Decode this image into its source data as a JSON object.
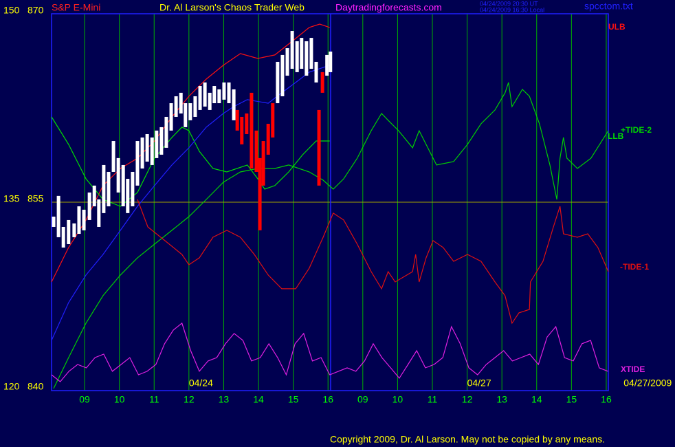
{
  "chart_data": {
    "type": "line",
    "symbol": "S&P E-Mini",
    "title": "Dr. Al Larson's Chaos Trader Web",
    "site": "Daytradingforecasts.com",
    "timestamps": [
      "04/24/2009 20:30 UT",
      "04/24/2009 16:30 Local"
    ],
    "file": "spcctom.txt",
    "copyright": "Copyright 2009, Dr. Al Larson. May not be copied by any means.",
    "annotations": [
      {
        "text": "04/24",
        "x": 3
      },
      {
        "text": "04/27",
        "x": 11
      },
      {
        "text": "04/27/2009",
        "x": 15.5
      }
    ],
    "xlim": [
      -0.95,
      15.06
    ],
    "xticks": [
      {
        "value": 0,
        "label": "09"
      },
      {
        "value": 1,
        "label": "10"
      },
      {
        "value": 2,
        "label": "11"
      },
      {
        "value": 3,
        "label": "12"
      },
      {
        "value": 4,
        "label": "13"
      },
      {
        "value": 5,
        "label": "14"
      },
      {
        "value": 6,
        "label": "15"
      },
      {
        "value": 7,
        "label": "16"
      },
      {
        "value": 8,
        "label": "09"
      },
      {
        "value": 9,
        "label": "10"
      },
      {
        "value": 10,
        "label": "11"
      },
      {
        "value": 11,
        "label": "12"
      },
      {
        "value": 12,
        "label": "13"
      },
      {
        "value": 13,
        "label": "14"
      },
      {
        "value": 14,
        "label": "15"
      },
      {
        "value": 15,
        "label": "16"
      }
    ],
    "ylim": [
      840,
      870
    ],
    "yticks": [
      840,
      855,
      870
    ],
    "y2lim": [
      120,
      150
    ],
    "y2ticks": [
      120,
      135,
      150
    ],
    "grid": true,
    "bars": [
      {
        "color": "#ffffff",
        "x": [
          -0.89,
          -0.75,
          -0.61,
          -0.46,
          -0.3,
          -0.16,
          -0.02,
          0.14,
          0.28,
          0.41,
          0.55,
          0.69,
          0.83,
          0.97,
          1.11,
          1.24,
          1.38,
          1.52,
          1.66,
          1.8,
          1.94,
          2.07,
          2.21,
          2.35,
          2.49,
          2.63,
          2.77,
          2.9,
          3.04,
          3.18,
          3.32,
          3.46,
          3.6,
          3.73,
          3.87,
          4.01,
          4.15,
          4.29,
          5.55,
          5.69,
          5.83,
          5.97,
          6.11,
          6.24,
          6.38,
          6.52,
          6.66,
          6.97,
          7.07
        ],
        "high": [
          853.85,
          855.5,
          853.03,
          853.58,
          853.31,
          854.67,
          854.4,
          855.77,
          856.32,
          855.22,
          857.96,
          857.41,
          859.87,
          858.51,
          857.96,
          856.86,
          857.41,
          859.87,
          860.15,
          860.42,
          860.15,
          860.7,
          860.97,
          861.79,
          862.88,
          863.43,
          863.71,
          862.88,
          862.88,
          863.43,
          864.25,
          864.53,
          863.71,
          864.25,
          863.98,
          864.53,
          864.53,
          863.98,
          866.17,
          866.72,
          867.26,
          868.63,
          867.81,
          868.08,
          867.81,
          868.08,
          866.17,
          866.72,
          866.99
        ],
        "low": [
          853.03,
          852.21,
          851.39,
          851.66,
          852.21,
          852.48,
          852.76,
          853.58,
          854.67,
          853.03,
          854.13,
          854.67,
          857.41,
          855.77,
          854.67,
          854.13,
          854.67,
          856.32,
          857.68,
          858.23,
          857.96,
          858.51,
          858.78,
          859.33,
          860.7,
          861.79,
          862.06,
          860.97,
          861.52,
          861.79,
          862.34,
          862.61,
          862.34,
          862.88,
          862.88,
          863.16,
          862.88,
          861.52,
          862.88,
          863.43,
          865.07,
          865.62,
          865.35,
          865.62,
          865.07,
          865.62,
          864.53,
          865.07,
          865.35
        ]
      },
      {
        "color": "#ff0000",
        "x": [
          4.39,
          4.52,
          4.66,
          4.8,
          4.94,
          5.04,
          5.14,
          5.28,
          5.41,
          6.74,
          6.84
        ],
        "high": [
          862.34,
          861.79,
          862.06,
          863.71,
          860.7,
          858.51,
          859.87,
          861.24,
          862.88,
          862.34,
          865.35
        ],
        "low": [
          860.7,
          859.6,
          860.42,
          857.68,
          857.41,
          852.76,
          856.32,
          858.78,
          860.15,
          856.32,
          863.71
        ]
      }
    ],
    "series": [
      {
        "name": "ULB",
        "color": "#ff1010",
        "axis": "y",
        "x": [
          -0.95,
          -0.46,
          0.04,
          0.53,
          1.03,
          1.52,
          2.01,
          2.51,
          3.0,
          3.5,
          3.99,
          4.48,
          4.98,
          5.47,
          5.97,
          6.46,
          6.76,
          7.05
        ],
        "values": [
          848.65,
          851.39,
          853.58,
          856.32,
          857.69,
          858.5,
          859.87,
          861.79,
          863.43,
          864.8,
          865.9,
          866.83,
          866.44,
          866.72,
          867.81,
          868.91,
          869.18,
          868.91
        ]
      },
      {
        "name": "LLB",
        "color": "#00e000",
        "axis": "y",
        "x": [
          -0.95,
          -0.46,
          0.04,
          0.53,
          1.03,
          1.52,
          2.01,
          2.51,
          2.8,
          3.0,
          3.3,
          3.69,
          4.09,
          4.68,
          4.98,
          5.18,
          5.47,
          5.87,
          6.27,
          6.66,
          7.05
        ],
        "values": [
          861.79,
          859.6,
          856.86,
          855.22,
          854.67,
          855.77,
          858.51,
          860.15,
          860.97,
          860.7,
          859.05,
          857.68,
          857.41,
          857.96,
          856.86,
          856.04,
          856.32,
          857.41,
          858.78,
          859.87,
          859.87
        ]
      },
      {
        "color": "#2020ff",
        "axis": "y",
        "x": [
          -0.95,
          -0.46,
          0.04,
          0.53,
          1.03,
          1.52,
          2.01,
          2.51,
          3.0,
          3.5,
          3.99,
          4.29,
          4.68,
          5.28,
          5.67,
          6.07,
          6.46,
          7.05
        ],
        "values": [
          844.0,
          847.01,
          849.2,
          850.84,
          852.76,
          854.67,
          856.32,
          857.96,
          859.33,
          860.97,
          862.06,
          862.61,
          863.16,
          862.88,
          863.71,
          864.53,
          865.35,
          865.9
        ]
      },
      {
        "name": "+TIDE-2",
        "color": "#00d000",
        "axis": "y2",
        "x": [
          -0.89,
          -0.46,
          0.04,
          0.53,
          1.03,
          1.52,
          2.01,
          2.51,
          3.0,
          3.5,
          3.99,
          4.48,
          4.98,
          5.47,
          5.87,
          6.46,
          6.86,
          7.15,
          7.45,
          7.84,
          8.24,
          8.54,
          8.73,
          9.03,
          9.43,
          9.62,
          9.82,
          10.12,
          10.61,
          11.01,
          11.4,
          11.8,
          12.09,
          12.19,
          12.29,
          12.59,
          12.79,
          13.08,
          13.38,
          13.58,
          13.67,
          13.77,
          13.87,
          14.17,
          14.56,
          15.06
        ],
        "values": [
          120.17,
          122.63,
          125.37,
          127.56,
          129.2,
          130.57,
          131.66,
          132.76,
          133.85,
          135.22,
          136.59,
          137.41,
          137.68,
          137.68,
          137.96,
          137.41,
          136.75,
          136.04,
          136.86,
          138.5,
          140.69,
          142.06,
          141.52,
          140.69,
          139.33,
          140.69,
          139.6,
          137.96,
          138.23,
          139.6,
          141.24,
          142.34,
          143.7,
          144.53,
          142.61,
          143.98,
          143.43,
          141.24,
          137.96,
          135.22,
          138.5,
          140.15,
          138.5,
          137.68,
          138.5,
          140.69
        ]
      },
      {
        "name": "-TIDE-1",
        "color": "#e01010",
        "axis": "y2",
        "x": [
          1.52,
          1.82,
          2.31,
          2.8,
          3.0,
          3.3,
          3.69,
          4.09,
          4.48,
          4.88,
          5.28,
          5.67,
          6.07,
          6.46,
          6.86,
          7.15,
          7.45,
          7.84,
          8.24,
          8.54,
          8.73,
          8.93,
          9.43,
          9.52,
          9.62,
          9.82,
          10.02,
          10.31,
          10.61,
          11.01,
          11.4,
          11.8,
          12.09,
          12.29,
          12.49,
          12.79,
          12.82,
          13.18,
          13.48,
          13.67,
          13.77,
          14.17,
          14.47,
          14.76,
          15.06
        ],
        "values": [
          135.22,
          133.03,
          131.94,
          130.84,
          130.02,
          130.57,
          132.21,
          132.76,
          132.21,
          130.84,
          129.2,
          128.11,
          128.11,
          129.75,
          132.21,
          134.13,
          133.58,
          131.66,
          129.47,
          128.11,
          129.47,
          128.65,
          129.47,
          130.84,
          128.65,
          130.57,
          131.94,
          131.39,
          130.29,
          130.84,
          130.29,
          128.65,
          127.56,
          125.37,
          126.19,
          126.46,
          128.65,
          130.29,
          133.03,
          134.67,
          132.48,
          132.21,
          132.48,
          131.39,
          129.47
        ]
      },
      {
        "name": "XTIDE",
        "color": "#e020e0",
        "axis": "y2",
        "x": [
          -0.95,
          -0.7,
          -0.45,
          -0.2,
          0.05,
          0.3,
          0.55,
          0.8,
          1.05,
          1.3,
          1.55,
          1.8,
          2.05,
          2.3,
          2.55,
          2.8,
          3.05,
          3.3,
          3.55,
          3.8,
          4.05,
          4.3,
          4.55,
          4.8,
          5.05,
          5.3,
          5.55,
          5.8,
          6.05,
          6.3,
          6.55,
          6.8,
          7.05,
          7.3,
          7.55,
          7.8,
          8.05,
          8.3,
          8.55,
          8.8,
          9.05,
          9.3,
          9.55,
          9.8,
          10.05,
          10.3,
          10.55,
          10.8,
          11.05,
          11.3,
          11.55,
          11.8,
          12.05,
          12.3,
          12.55,
          12.8,
          13.05,
          13.3,
          13.55,
          13.8,
          14.05,
          14.3,
          14.55,
          14.8,
          15.05
        ],
        "values": [
          121.26,
          120.71,
          121.54,
          122.08,
          121.81,
          122.63,
          122.9,
          121.54,
          122.08,
          122.63,
          121.26,
          121.54,
          122.08,
          123.73,
          124.82,
          125.37,
          123.18,
          121.54,
          122.36,
          122.63,
          123.73,
          124.55,
          124.0,
          122.36,
          122.63,
          123.73,
          122.63,
          121.26,
          123.73,
          124.55,
          122.36,
          122.63,
          121.26,
          121.54,
          121.81,
          121.54,
          122.36,
          123.73,
          122.63,
          121.81,
          120.99,
          122.08,
          123.18,
          121.81,
          122.08,
          122.63,
          125.09,
          123.73,
          121.81,
          121.26,
          122.08,
          122.63,
          123.18,
          122.36,
          122.63,
          122.9,
          122.08,
          124.27,
          125.09,
          122.63,
          122.36,
          123.73,
          124.0,
          121.81,
          121.54
        ]
      }
    ]
  }
}
